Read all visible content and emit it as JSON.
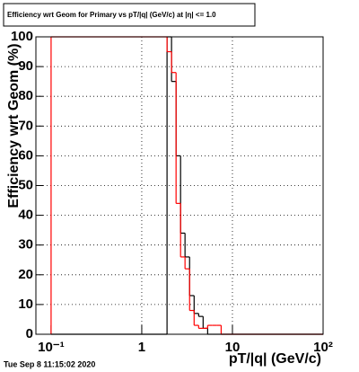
{
  "chart_data": {
    "type": "histogram",
    "title": "Efficiency wrt Geom for Primary vs pT/|q| (GeV/c) at |η| <= 1.0",
    "x_label": "pT/|q| (GeV/c)",
    "y_label": "Efficiency wrt Geom (%)",
    "footer": "Tue Sep  8 11:15:02 2020",
    "log_x": true,
    "grid": true,
    "bins": [
      0.1,
      1.9,
      2.13,
      2.39,
      2.68,
      3.0,
      3.37,
      3.78,
      4.24,
      4.75,
      5.33,
      5.97,
      6.7,
      7.51,
      100
    ],
    "series": [
      {
        "color": "#000000",
        "values": [
          0,
          100,
          85,
          60,
          34,
          26,
          13,
          7,
          6,
          2,
          0,
          0,
          0,
          0
        ]
      },
      {
        "color": "#ff0000",
        "values": [
          100,
          95,
          88,
          44,
          26,
          22,
          8,
          3,
          2,
          2,
          3,
          3,
          3,
          0
        ]
      }
    ],
    "xlim": [
      0.068,
      100
    ],
    "xticks": [
      {
        "value": 0.1,
        "label": "10⁻¹"
      },
      1,
      10,
      {
        "value": 100,
        "label": "10²"
      }
    ],
    "ylim": [
      0,
      100
    ],
    "yticks": [
      0,
      10,
      20,
      30,
      40,
      50,
      60,
      70,
      80,
      90,
      100
    ]
  }
}
